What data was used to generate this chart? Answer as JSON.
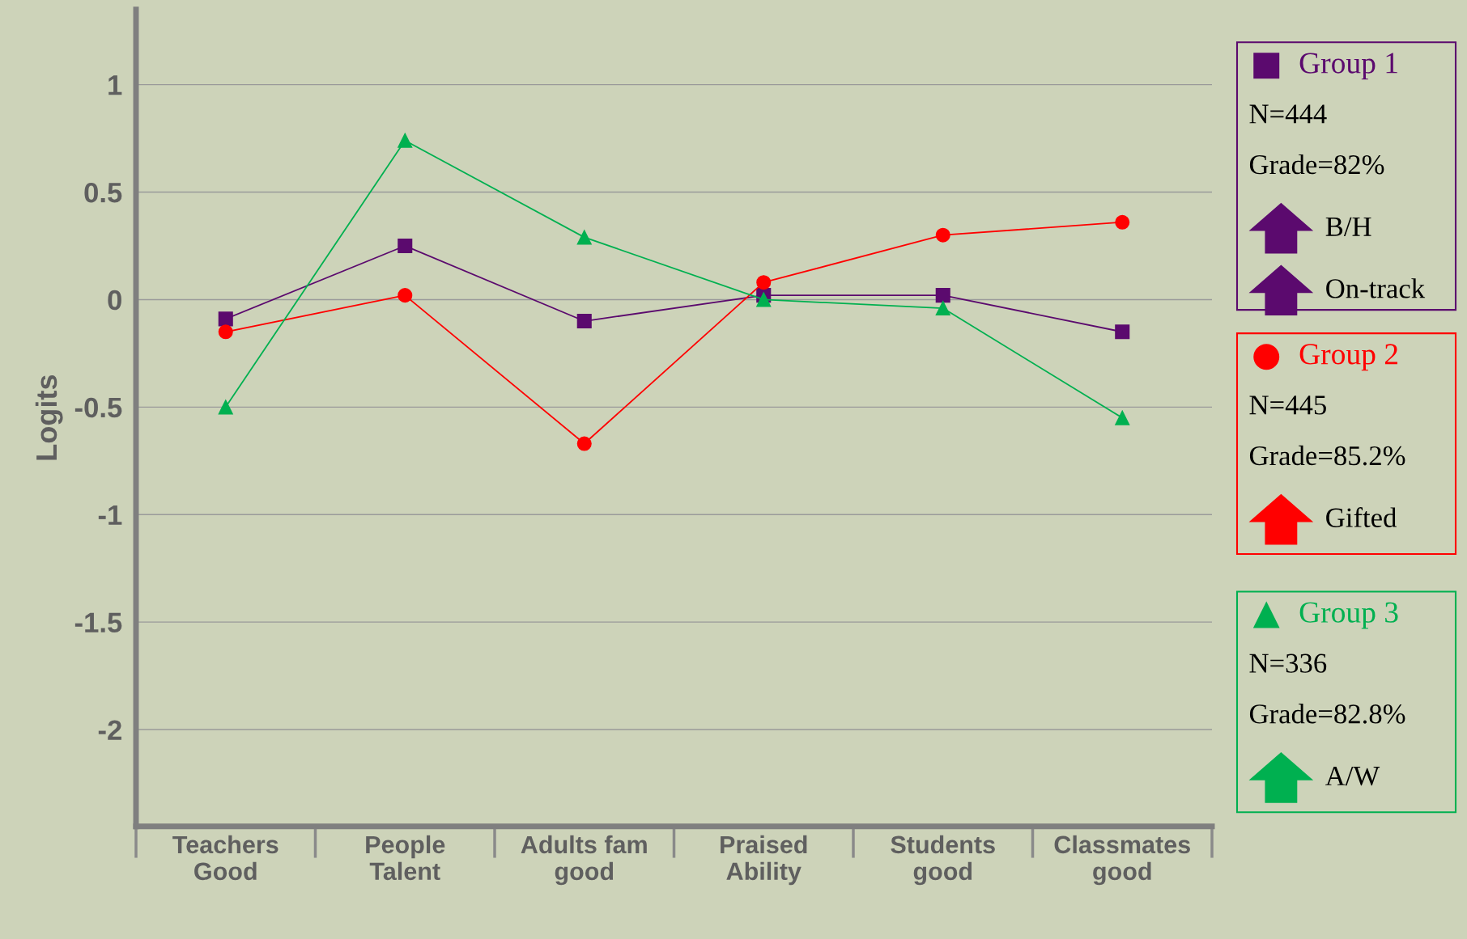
{
  "chart_data": {
    "type": "line",
    "ylabel": "Logits",
    "categories": [
      "Teachers\nGood",
      "People\nTalent",
      "Adults fam\ngood",
      "Praised\nAbility",
      "Students\ngood",
      "Classmates\ngood"
    ],
    "series": [
      {
        "name": "Group 1",
        "color": "#5b0a6e",
        "marker": "square",
        "values": [
          -0.09,
          0.25,
          -0.1,
          0.02,
          0.02,
          -0.15
        ]
      },
      {
        "name": "Group 2",
        "color": "#ff0000",
        "marker": "circle",
        "values": [
          -0.15,
          0.02,
          -0.67,
          0.08,
          0.3,
          0.36
        ]
      },
      {
        "name": "Group 3",
        "color": "#00b050",
        "marker": "triangle",
        "values": [
          -0.5,
          0.74,
          0.29,
          0.0,
          -0.04,
          -0.55
        ]
      }
    ],
    "ylim": [
      -2.45,
      1.35
    ],
    "yticks": [
      1,
      0.5,
      0,
      {
        "value": -0.5,
        "label": "-0.5"
      },
      {
        "value": -1,
        "label": "-1"
      },
      {
        "value": -1.5,
        "label": "-1.5"
      },
      {
        "value": -2,
        "label": "-2"
      }
    ],
    "grid": "y",
    "legend": "right",
    "line_style": "solid",
    "annotations": [
      "N=444",
      "Grade=82%",
      "B/H",
      "On-track",
      "N=445",
      "Grade=85.2%",
      "Gifted",
      "N=336",
      "Grade=82.8%",
      "A/W"
    ]
  }
}
